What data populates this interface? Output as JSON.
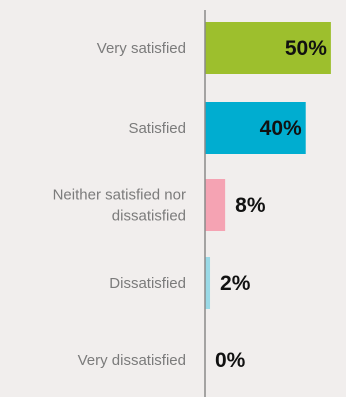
{
  "chart_data": {
    "type": "bar",
    "orientation": "horizontal",
    "categories": [
      "Very satisfied",
      "Satisfied",
      "Neither satisfied nor dissatisfied",
      "Dissatisfied",
      "Very dissatisfied"
    ],
    "category_lines": [
      [
        "Very satisfied"
      ],
      [
        "Satisfied"
      ],
      [
        "Neither satisfied nor",
        "dissatisfied"
      ],
      [
        "Dissatisfied"
      ],
      [
        "Very dissatisfied"
      ]
    ],
    "values": [
      50,
      40,
      8,
      2,
      0
    ],
    "value_labels": [
      "50%",
      "40%",
      "8%",
      "2%",
      "0%"
    ],
    "colors": [
      "#9dbf2d",
      "#00add0",
      "#f5a3b3",
      "#9ad9e6",
      "#cccccc"
    ],
    "value_label_inside": [
      true,
      true,
      false,
      false,
      false
    ],
    "xlim": [
      0,
      56
    ],
    "grid": false,
    "title": "",
    "xlabel": "",
    "ylabel": ""
  },
  "colors": {
    "background": "#f1eeed",
    "axis": "#8a8a8a",
    "category_text": "#7b7b7b",
    "value_text": "#111111"
  }
}
